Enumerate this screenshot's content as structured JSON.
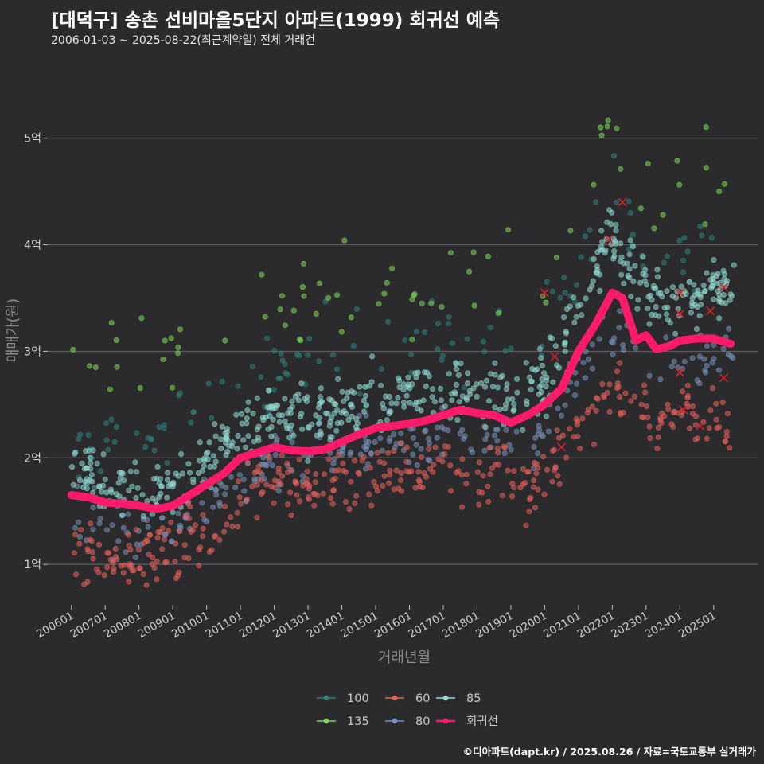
{
  "header": {
    "title": "[대덕구] 송촌 선비마을5단지 아파트(1999) 회귀선 예측",
    "subtitle": "2006-01-03 ~ 2025-08-22(최근계약일) 전체 거래건"
  },
  "footer": {
    "caption": "©디아파트(dapt.kr) / 2025.08.26 / 자료=국토교통부 실거래가"
  },
  "colors": {
    "background": "#2b2b2d",
    "grid": "#5e5e60",
    "s100": "#2f7f7b",
    "s135": "#7ed957",
    "s60": "#e8615c",
    "s80": "#7891b8",
    "s85": "#92dcd6",
    "regression": "#ff1a6c"
  },
  "chart_data": {
    "type": "scatter",
    "title": "[대덕구] 송촌 선비마을5단지 아파트(1999) 회귀선 예측",
    "xlabel": "거래년월",
    "ylabel": "매매가(원)",
    "x_unit": "fractional year",
    "xlim": [
      2005.3,
      2026.3
    ],
    "ylim": [
      0.62,
      5.7
    ],
    "y_unit": "억 (100M KRW)",
    "y_ticks": [
      {
        "value": 1,
        "label": "1억"
      },
      {
        "value": 2,
        "label": "2억"
      },
      {
        "value": 3,
        "label": "3억"
      },
      {
        "value": 4,
        "label": "4억"
      },
      {
        "value": 5,
        "label": "5억"
      }
    ],
    "x_ticks": [
      {
        "value": 2006.0,
        "label": "200601"
      },
      {
        "value": 2007.0,
        "label": "200701"
      },
      {
        "value": 2008.0,
        "label": "200801"
      },
      {
        "value": 2009.0,
        "label": "200901"
      },
      {
        "value": 2010.0,
        "label": "201001"
      },
      {
        "value": 2011.0,
        "label": "201101"
      },
      {
        "value": 2012.0,
        "label": "201201"
      },
      {
        "value": 2013.0,
        "label": "201301"
      },
      {
        "value": 2014.0,
        "label": "201401"
      },
      {
        "value": 2015.0,
        "label": "201501"
      },
      {
        "value": 2016.0,
        "label": "201601"
      },
      {
        "value": 2017.0,
        "label": "201701"
      },
      {
        "value": 2018.0,
        "label": "201801"
      },
      {
        "value": 2019.0,
        "label": "201901"
      },
      {
        "value": 2020.0,
        "label": "202001"
      },
      {
        "value": 2021.0,
        "label": "202101"
      },
      {
        "value": 2022.0,
        "label": "202201"
      },
      {
        "value": 2023.0,
        "label": "202301"
      },
      {
        "value": 2024.0,
        "label": "202401"
      },
      {
        "value": 2025.0,
        "label": "202501"
      }
    ],
    "legend": {
      "placement": "bottom",
      "entries": [
        {
          "key": "s100",
          "label": "100"
        },
        {
          "key": "s60",
          "label": "60"
        },
        {
          "key": "s85",
          "label": "85"
        },
        {
          "key": "s135",
          "label": "135"
        },
        {
          "key": "s80",
          "label": "80"
        },
        {
          "key": "regression",
          "label": "회귀선"
        }
      ]
    },
    "series": [
      {
        "name": "60",
        "key": "s60",
        "kind": "band",
        "trend": [
          [
            2006.0,
            1.2
          ],
          [
            2007.0,
            1.05
          ],
          [
            2008.0,
            1.05
          ],
          [
            2009.0,
            1.15
          ],
          [
            2010.0,
            1.3
          ],
          [
            2011.0,
            1.55
          ],
          [
            2011.8,
            1.85
          ],
          [
            2012.5,
            1.75
          ],
          [
            2013.0,
            1.7
          ],
          [
            2013.5,
            1.75
          ],
          [
            2014.0,
            1.8
          ],
          [
            2015.0,
            1.85
          ],
          [
            2016.0,
            1.85
          ],
          [
            2016.8,
            1.95
          ],
          [
            2017.5,
            1.9
          ],
          [
            2018.0,
            1.9
          ],
          [
            2019.0,
            1.8
          ],
          [
            2019.5,
            1.7
          ],
          [
            2020.0,
            1.85
          ],
          [
            2020.6,
            2.15
          ],
          [
            2021.0,
            2.3
          ],
          [
            2022.0,
            2.7
          ],
          [
            2023.0,
            2.4
          ],
          [
            2024.0,
            2.4
          ],
          [
            2025.5,
            2.4
          ]
        ],
        "spread": 0.14,
        "count": 380
      },
      {
        "name": "80",
        "key": "s80",
        "kind": "band",
        "trend": [
          [
            2006.0,
            1.45
          ],
          [
            2007.0,
            1.35
          ],
          [
            2008.0,
            1.3
          ],
          [
            2009.0,
            1.35
          ],
          [
            2010.0,
            1.55
          ],
          [
            2011.0,
            1.8
          ],
          [
            2012.0,
            2.0
          ],
          [
            2013.0,
            2.0
          ],
          [
            2014.0,
            2.05
          ],
          [
            2015.0,
            2.15
          ],
          [
            2016.0,
            2.2
          ],
          [
            2017.0,
            2.25
          ],
          [
            2018.0,
            2.2
          ],
          [
            2019.0,
            2.15
          ],
          [
            2020.0,
            2.3
          ],
          [
            2021.0,
            2.8
          ],
          [
            2022.0,
            3.2
          ],
          [
            2023.0,
            2.9
          ],
          [
            2024.0,
            2.9
          ],
          [
            2025.5,
            3.0
          ]
        ],
        "spread": 0.13,
        "count": 260
      },
      {
        "name": "85",
        "key": "s85",
        "kind": "band",
        "trend": [
          [
            2006.0,
            1.85
          ],
          [
            2007.0,
            1.7
          ],
          [
            2008.0,
            1.7
          ],
          [
            2009.0,
            1.75
          ],
          [
            2010.0,
            1.95
          ],
          [
            2011.0,
            2.25
          ],
          [
            2012.0,
            2.4
          ],
          [
            2013.0,
            2.4
          ],
          [
            2014.0,
            2.5
          ],
          [
            2015.0,
            2.55
          ],
          [
            2016.0,
            2.6
          ],
          [
            2017.0,
            2.65
          ],
          [
            2018.0,
            2.6
          ],
          [
            2019.0,
            2.55
          ],
          [
            2020.0,
            2.75
          ],
          [
            2021.0,
            3.4
          ],
          [
            2022.0,
            4.1
          ],
          [
            2023.0,
            3.5
          ],
          [
            2024.0,
            3.5
          ],
          [
            2025.5,
            3.6
          ]
        ],
        "spread": 0.15,
        "count": 560
      },
      {
        "name": "100",
        "key": "s100",
        "kind": "band",
        "trend": [
          [
            2006.0,
            2.2
          ],
          [
            2007.0,
            2.1
          ],
          [
            2008.0,
            2.2
          ],
          [
            2009.0,
            2.3
          ],
          [
            2010.0,
            2.5
          ],
          [
            2011.0,
            2.8
          ],
          [
            2012.0,
            2.9
          ],
          [
            2013.0,
            2.9
          ],
          [
            2014.0,
            2.95
          ],
          [
            2015.0,
            3.0
          ],
          [
            2016.0,
            3.05
          ],
          [
            2017.0,
            3.1
          ],
          [
            2018.0,
            3.05
          ],
          [
            2019.0,
            3.0
          ],
          [
            2020.0,
            3.2
          ],
          [
            2021.0,
            3.8
          ],
          [
            2022.0,
            4.4
          ],
          [
            2023.0,
            3.8
          ],
          [
            2024.0,
            4.0
          ],
          [
            2025.5,
            4.0
          ]
        ],
        "spread": 0.2,
        "count": 120
      },
      {
        "name": "135",
        "key": "s135",
        "kind": "band",
        "trend": [
          [
            2006.0,
            2.9
          ],
          [
            2007.0,
            2.8
          ],
          [
            2008.0,
            2.8
          ],
          [
            2009.0,
            2.9
          ],
          [
            2010.0,
            3.1
          ],
          [
            2011.0,
            3.3
          ],
          [
            2012.0,
            3.4
          ],
          [
            2013.0,
            3.4
          ],
          [
            2014.0,
            3.4
          ],
          [
            2015.0,
            3.4
          ],
          [
            2016.0,
            3.5
          ],
          [
            2017.0,
            3.6
          ],
          [
            2018.0,
            3.55
          ],
          [
            2019.0,
            3.5
          ],
          [
            2020.0,
            3.8
          ],
          [
            2021.0,
            4.5
          ],
          [
            2022.0,
            5.0
          ],
          [
            2023.0,
            4.5
          ],
          [
            2024.0,
            4.5
          ],
          [
            2025.5,
            4.8
          ]
        ],
        "spread": 0.25,
        "count": 75
      },
      {
        "name": "회귀선",
        "key": "regression",
        "kind": "line",
        "points": [
          [
            2006.0,
            1.65
          ],
          [
            2006.5,
            1.63
          ],
          [
            2007.0,
            1.58
          ],
          [
            2007.5,
            1.57
          ],
          [
            2008.0,
            1.55
          ],
          [
            2008.5,
            1.52
          ],
          [
            2009.0,
            1.55
          ],
          [
            2009.5,
            1.65
          ],
          [
            2010.0,
            1.75
          ],
          [
            2010.5,
            1.85
          ],
          [
            2011.0,
            2.0
          ],
          [
            2011.5,
            2.05
          ],
          [
            2012.0,
            2.1
          ],
          [
            2012.5,
            2.07
          ],
          [
            2013.0,
            2.06
          ],
          [
            2013.5,
            2.08
          ],
          [
            2014.0,
            2.15
          ],
          [
            2014.5,
            2.22
          ],
          [
            2015.0,
            2.28
          ],
          [
            2015.5,
            2.3
          ],
          [
            2016.0,
            2.32
          ],
          [
            2016.5,
            2.35
          ],
          [
            2017.0,
            2.4
          ],
          [
            2017.5,
            2.45
          ],
          [
            2018.0,
            2.42
          ],
          [
            2018.5,
            2.4
          ],
          [
            2019.0,
            2.33
          ],
          [
            2019.5,
            2.4
          ],
          [
            2020.0,
            2.5
          ],
          [
            2020.5,
            2.65
          ],
          [
            2021.0,
            3.0
          ],
          [
            2021.5,
            3.25
          ],
          [
            2022.0,
            3.55
          ],
          [
            2022.3,
            3.5
          ],
          [
            2022.7,
            3.1
          ],
          [
            2023.0,
            3.15
          ],
          [
            2023.3,
            3.02
          ],
          [
            2023.7,
            3.05
          ],
          [
            2024.0,
            3.1
          ],
          [
            2024.5,
            3.12
          ],
          [
            2025.0,
            3.12
          ],
          [
            2025.5,
            3.07
          ]
        ]
      }
    ],
    "outliers_red_x": [
      [
        2020.0,
        3.55
      ],
      [
        2020.3,
        2.95
      ],
      [
        2020.5,
        2.1
      ],
      [
        2021.9,
        4.05
      ],
      [
        2022.3,
        4.4
      ],
      [
        2024.0,
        3.55
      ],
      [
        2024.0,
        3.35
      ],
      [
        2024.0,
        2.8
      ],
      [
        2024.1,
        2.45
      ],
      [
        2024.6,
        2.3
      ],
      [
        2024.9,
        3.38
      ],
      [
        2025.3,
        3.6
      ],
      [
        2025.3,
        2.75
      ]
    ]
  }
}
